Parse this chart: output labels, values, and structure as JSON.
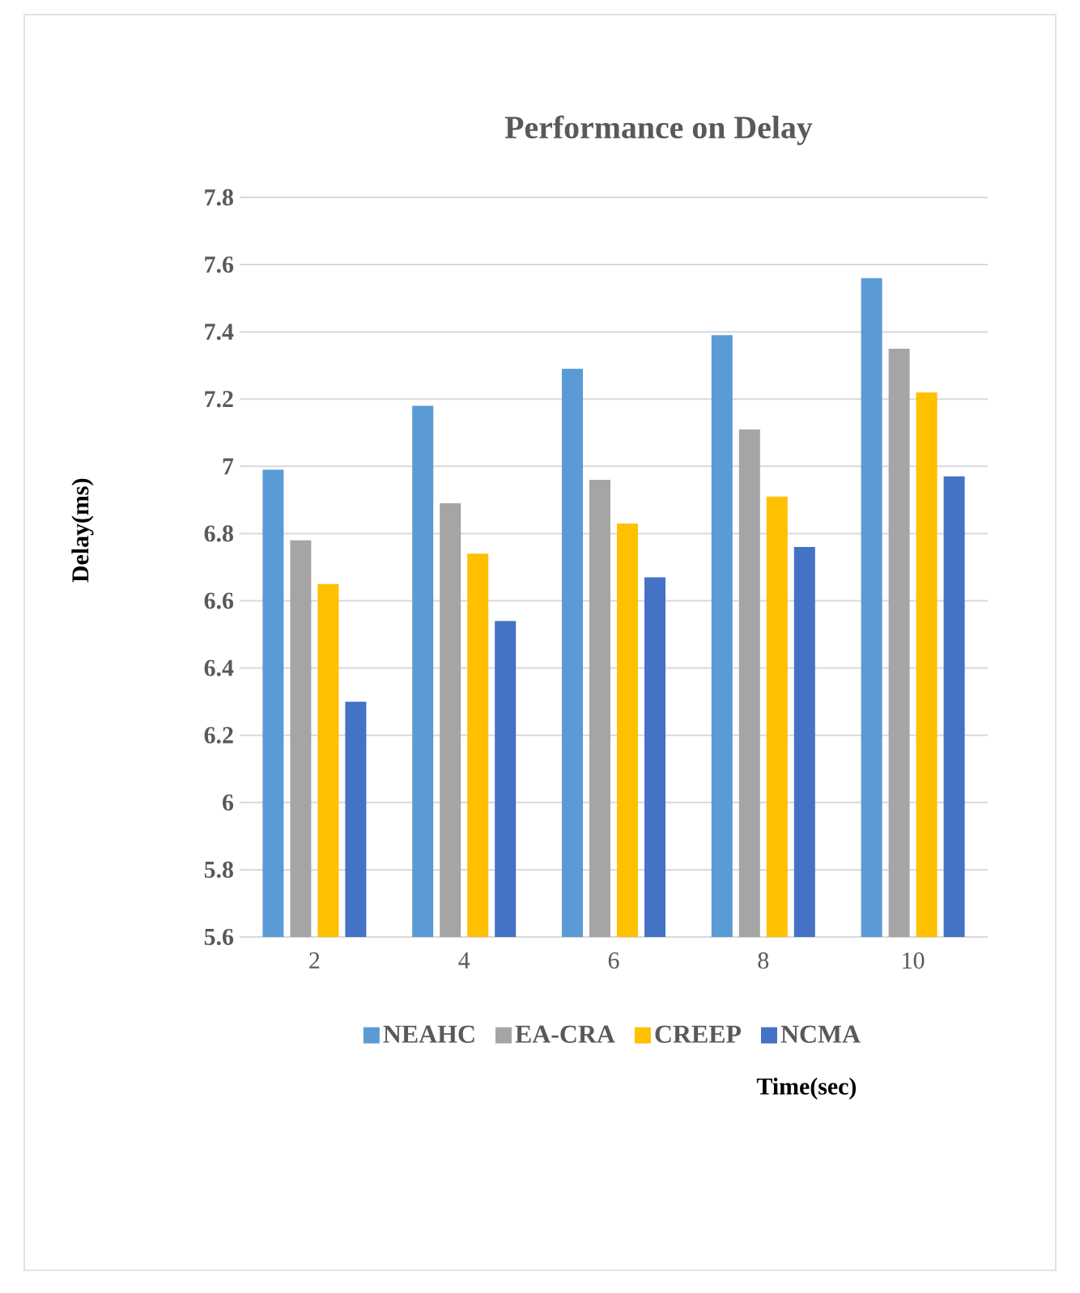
{
  "chart_data": {
    "type": "bar",
    "title": "Performance on Delay",
    "xlabel": "Time(sec)",
    "ylabel": "Delay(ms)",
    "categories": [
      "2",
      "4",
      "6",
      "8",
      "10"
    ],
    "series": [
      {
        "name": "NEAHC",
        "color": "#5b9bd5",
        "values": [
          6.99,
          7.18,
          7.29,
          7.39,
          7.56
        ]
      },
      {
        "name": "EA-CRA",
        "color": "#a5a5a5",
        "values": [
          6.78,
          6.89,
          6.96,
          7.11,
          7.35
        ]
      },
      {
        "name": "CREEP",
        "color": "#ffc000",
        "values": [
          6.65,
          6.74,
          6.83,
          6.91,
          7.22
        ]
      },
      {
        "name": "NCMA",
        "color": "#4472c4",
        "values": [
          6.3,
          6.54,
          6.67,
          6.76,
          6.97
        ]
      }
    ],
    "ylim": [
      5.6,
      7.8
    ],
    "yticks": [
      5.6,
      5.8,
      6,
      6.2,
      6.4,
      6.6,
      6.8,
      7,
      7.2,
      7.4,
      7.6,
      7.8
    ],
    "grid": "y",
    "legend": "bottom"
  }
}
